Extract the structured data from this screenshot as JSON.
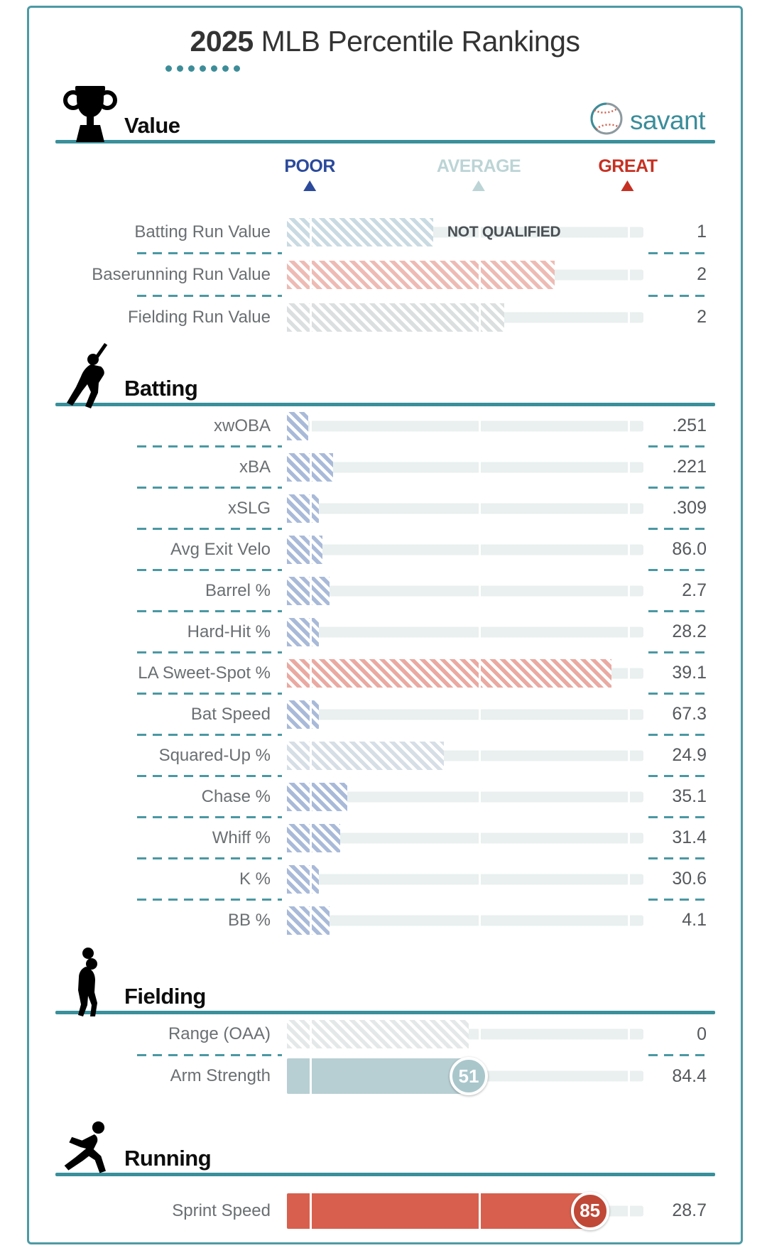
{
  "title": {
    "year": "2025",
    "rest": " MLB Percentile Rankings"
  },
  "brand": {
    "name": "savant"
  },
  "legend": {
    "items": [
      {
        "label": "POOR",
        "color": "#2b4a9b",
        "pos_pct": 6.4
      },
      {
        "label": "AVERAGE",
        "color": "#bcd4d6",
        "pos_pct": 53.8
      },
      {
        "label": "GREAT",
        "color": "#c63022",
        "pos_pct": 95.6
      }
    ]
  },
  "colors": {
    "accent_teal": "#39909b",
    "dash_teal": "#4a98a3",
    "border_teal": "#4d9aa5",
    "track": "#e9f0ef"
  },
  "chart_data": {
    "type": "bar",
    "title": "2025 MLB Percentile Rankings",
    "note": "horizontal percentile sliders, scale 0-100; hatched = not qualified",
    "sections": [
      {
        "name": "Value",
        "icon": "trophy-icon",
        "rows": [
          {
            "label": "Batting Run Value",
            "value": "1",
            "percentile": 41,
            "style": "hatched",
            "color": "#c9dae2",
            "note": "NOT QUALIFIED"
          },
          {
            "label": "Baserunning Run Value",
            "value": "2",
            "percentile": 75,
            "style": "hatched",
            "color": "#eebbb4"
          },
          {
            "label": "Fielding Run Value",
            "value": "2",
            "percentile": 61,
            "style": "hatched",
            "color": "#dbdfdf"
          }
        ]
      },
      {
        "name": "Batting",
        "icon": "batter-icon",
        "rows": [
          {
            "label": "xwOBA",
            "value": ".251",
            "percentile": 6,
            "style": "hatched",
            "color": "#a9bad9"
          },
          {
            "label": "xBA",
            "value": ".221",
            "percentile": 13,
            "style": "hatched",
            "color": "#a9bad9"
          },
          {
            "label": "xSLG",
            "value": ".309",
            "percentile": 9,
            "style": "hatched",
            "color": "#a9bad9"
          },
          {
            "label": "Avg Exit Velo",
            "value": "86.0",
            "percentile": 10,
            "style": "hatched",
            "color": "#a9bad9"
          },
          {
            "label": "Barrel %",
            "value": "2.7",
            "percentile": 12,
            "style": "hatched",
            "color": "#a9bad9"
          },
          {
            "label": "Hard-Hit %",
            "value": "28.2",
            "percentile": 9,
            "style": "hatched",
            "color": "#a9bad9"
          },
          {
            "label": "LA Sweet-Spot %",
            "value": "39.1",
            "percentile": 91,
            "style": "hatched",
            "color": "#eaa9a1"
          },
          {
            "label": "Bat Speed",
            "value": "67.3",
            "percentile": 9,
            "style": "hatched",
            "color": "#a9bad9"
          },
          {
            "label": "Squared-Up %",
            "value": "24.9",
            "percentile": 44,
            "style": "hatched",
            "color": "#d6dee6"
          },
          {
            "label": "Chase %",
            "value": "35.1",
            "percentile": 17,
            "style": "hatched",
            "color": "#a9bad9"
          },
          {
            "label": "Whiff %",
            "value": "31.4",
            "percentile": 15,
            "style": "hatched",
            "color": "#a9bad9"
          },
          {
            "label": "K %",
            "value": "30.6",
            "percentile": 9,
            "style": "hatched",
            "color": "#a9bad9"
          },
          {
            "label": "BB %",
            "value": "4.1",
            "percentile": 12,
            "style": "hatched",
            "color": "#a9bad9"
          }
        ]
      },
      {
        "name": "Fielding",
        "icon": "fielder-icon",
        "rows": [
          {
            "label": "Range (OAA)",
            "value": "0",
            "percentile": 51,
            "style": "hatched",
            "color": "#e4e8e8"
          },
          {
            "label": "Arm Strength",
            "value": "84.4",
            "percentile": 51,
            "style": "solid",
            "color": "#b7cfd3",
            "badge": "51",
            "badge_color": "#a9c6cb"
          }
        ]
      },
      {
        "name": "Running",
        "icon": "runner-icon",
        "rows": [
          {
            "label": "Sprint Speed",
            "value": "28.7",
            "percentile": 85,
            "style": "solid",
            "color": "#d85f4d",
            "badge": "85",
            "badge_color": "#c04837"
          }
        ]
      }
    ]
  }
}
